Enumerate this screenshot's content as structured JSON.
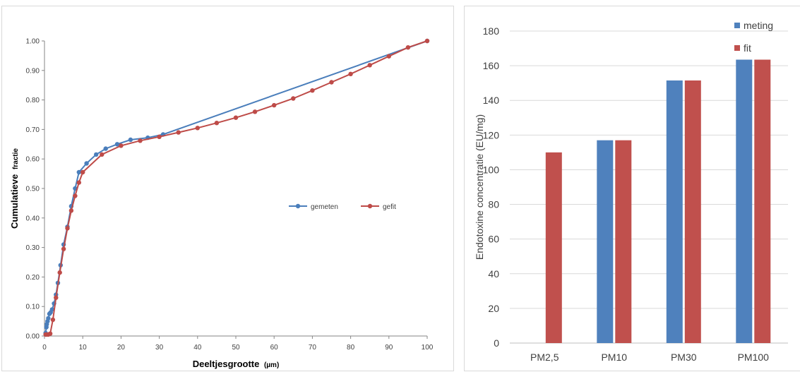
{
  "chart_data": [
    {
      "type": "line",
      "title": "",
      "xlabel": "Deeltjesgrootte (µm)",
      "xlabel_main": "Deeltjesgrootte",
      "xlabel_unit": "(µm)",
      "ylabel": "Cumulatieve fractie",
      "ylabel_main": "Cumulatieve",
      "ylabel_unit": "fractie",
      "xlim": [
        0,
        100
      ],
      "ylim": [
        0,
        1
      ],
      "xticks": [
        "0",
        "10",
        "20",
        "30",
        "40",
        "50",
        "60",
        "70",
        "80",
        "90",
        "100"
      ],
      "yticks": [
        "0.00",
        "0.10",
        "0.20",
        "0.30",
        "0.40",
        "0.50",
        "0.60",
        "0.70",
        "0.80",
        "0.90",
        "1.00"
      ],
      "grid": "none",
      "legend_position": "center-right",
      "colors": {
        "gemeten": "#4a7ebb",
        "gefit": "#be4b48"
      },
      "series": [
        {
          "name": "gemeten",
          "x": [
            0.3,
            0.5,
            0.6,
            0.8,
            1,
            1.3,
            1.6,
            2,
            2.5,
            3,
            3.5,
            4.2,
            5,
            6,
            7,
            8,
            9,
            11,
            13.5,
            16,
            19,
            22.5,
            27,
            31,
            100
          ],
          "y": [
            0.01,
            0.03,
            0.04,
            0.05,
            0.06,
            0.075,
            0.08,
            0.09,
            0.11,
            0.14,
            0.18,
            0.24,
            0.31,
            0.37,
            0.44,
            0.5,
            0.555,
            0.585,
            0.615,
            0.635,
            0.65,
            0.665,
            0.672,
            0.683,
            1.0
          ]
        },
        {
          "name": "gefit",
          "x": [
            0.3,
            0.6,
            1,
            1.5,
            2.2,
            3,
            4,
            5,
            6,
            7,
            8,
            9,
            10,
            15,
            20,
            25,
            30,
            35,
            40,
            45,
            50,
            55,
            60,
            65,
            70,
            75,
            80,
            85,
            90,
            95,
            100
          ],
          "y": [
            0.005,
            0.005,
            0.005,
            0.008,
            0.055,
            0.13,
            0.215,
            0.295,
            0.365,
            0.425,
            0.475,
            0.52,
            0.555,
            0.615,
            0.645,
            0.662,
            0.675,
            0.69,
            0.705,
            0.722,
            0.74,
            0.76,
            0.782,
            0.805,
            0.832,
            0.86,
            0.888,
            0.918,
            0.948,
            0.978,
            1.0
          ]
        }
      ]
    },
    {
      "type": "bar",
      "title": "",
      "xlabel": "",
      "ylabel": "Endotoxine concentratie (EU/mg)",
      "categories": [
        "PM2,5",
        "PM10",
        "PM30",
        "PM100"
      ],
      "ylim": [
        0,
        180
      ],
      "yticks": [
        "0",
        "20",
        "40",
        "60",
        "80",
        "100",
        "120",
        "140",
        "160",
        "180"
      ],
      "grid": "horizontal",
      "legend_position": "top-right",
      "colors": {
        "meting": "#4f81bd",
        "fit": "#c0504d"
      },
      "series": [
        {
          "name": "meting",
          "values": [
            0,
            117,
            151.5,
            163.5
          ]
        },
        {
          "name": "fit",
          "values": [
            110,
            117,
            151.5,
            163.5
          ]
        }
      ]
    }
  ]
}
